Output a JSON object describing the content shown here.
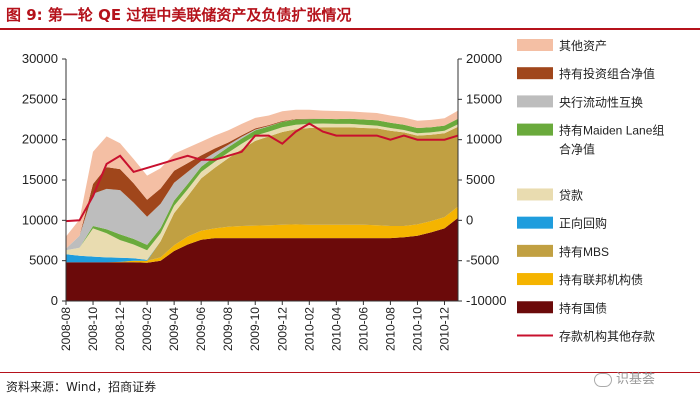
{
  "figure": {
    "label": "图 9:",
    "title": "第一轮 QE 过程中美联储资产及负债扩张情况",
    "source": "资料来源：Wind，招商证券",
    "watermark": "识基荟"
  },
  "colors": {
    "brand_red": "#b5121b",
    "other_assets": "#f4bfa4",
    "portfolio_net": "#a0461b",
    "swap_lines": "#bdbdbd",
    "maiden_lane": "#6aaa3c",
    "loans": "#e9dcb0",
    "repo": "#1f9ddd",
    "mbs": "#c1a042",
    "agency_debt": "#f5b400",
    "treasuries": "#6b0a0a",
    "deposits_line": "#c8102e"
  },
  "chart_data": {
    "type": "area",
    "stacked": true,
    "title": "第一轮 QE 过程中美联储资产及负债扩张情况",
    "x": [
      "2008-08",
      "2008-09",
      "2008-10",
      "2008-11",
      "2008-12",
      "2009-01",
      "2009-02",
      "2009-03",
      "2009-04",
      "2009-05",
      "2009-06",
      "2009-07",
      "2009-08",
      "2009-09",
      "2009-10",
      "2009-11",
      "2009-12",
      "2010-01",
      "2010-02",
      "2010-03",
      "2010-04",
      "2010-05",
      "2010-06",
      "2010-07",
      "2010-08",
      "2010-09",
      "2010-10",
      "2010-11",
      "2010-12",
      "2011-01"
    ],
    "x_tick_labels": [
      "2008-08",
      "2008-10",
      "2008-12",
      "2009-02",
      "2009-04",
      "2009-06",
      "2009-08",
      "2009-10",
      "2009-12",
      "2010-02",
      "2010-04",
      "2010-06",
      "2010-08",
      "2010-10",
      "2010-12"
    ],
    "left_axis": {
      "ylim": [
        0,
        30000
      ],
      "ticks": [
        0,
        5000,
        10000,
        15000,
        20000,
        25000,
        30000
      ]
    },
    "right_axis": {
      "ylim": [
        -10000,
        20000
      ],
      "ticks": [
        -10000,
        -5000,
        0,
        5000,
        10000,
        15000,
        20000
      ]
    },
    "series": [
      {
        "name": "持有国债",
        "color_key": "treasuries",
        "values": [
          4800,
          4800,
          4800,
          4800,
          4800,
          4800,
          4750,
          5000,
          6200,
          7000,
          7600,
          7800,
          7800,
          7800,
          7800,
          7800,
          7800,
          7800,
          7800,
          7800,
          7800,
          7800,
          7800,
          7800,
          7800,
          7900,
          8100,
          8500,
          9000,
          10300
        ]
      },
      {
        "name": "持有联邦机构债",
        "color_key": "agency_debt",
        "values": [
          0,
          0,
          0,
          0,
          50,
          200,
          250,
          400,
          700,
          1000,
          1100,
          1200,
          1400,
          1500,
          1550,
          1600,
          1650,
          1700,
          1650,
          1650,
          1650,
          1650,
          1650,
          1600,
          1500,
          1400,
          1400,
          1400,
          1400,
          1400
        ]
      },
      {
        "name": "持有MBS",
        "color_key": "mbs",
        "values": [
          0,
          0,
          0,
          0,
          0,
          0,
          0,
          2000,
          4000,
          5000,
          6500,
          7500,
          8500,
          9500,
          10500,
          11000,
          11500,
          11800,
          12000,
          12100,
          12100,
          12100,
          12000,
          12000,
          11800,
          11600,
          11000,
          10700,
          10400,
          9900
        ]
      },
      {
        "name": "正向回购",
        "color_key": "repo",
        "values": [
          1000,
          800,
          700,
          600,
          500,
          300,
          100,
          0,
          0,
          0,
          0,
          0,
          0,
          0,
          0,
          0,
          0,
          0,
          0,
          0,
          0,
          0,
          0,
          0,
          0,
          0,
          0,
          0,
          0,
          0
        ]
      },
      {
        "name": "贷款",
        "color_key": "loans",
        "values": [
          500,
          1000,
          3500,
          3000,
          2200,
          1700,
          1200,
          1000,
          900,
          850,
          800,
          750,
          700,
          700,
          650,
          600,
          600,
          550,
          500,
          450,
          400,
          400,
          400,
          350,
          350,
          300,
          300,
          300,
          300,
          300
        ]
      },
      {
        "name": "持有Maiden Lane组合净值",
        "color_key": "maiden_lane",
        "values": [
          0,
          0,
          300,
          500,
          700,
          700,
          650,
          650,
          650,
          650,
          650,
          650,
          650,
          650,
          650,
          650,
          650,
          650,
          600,
          600,
          600,
          650,
          650,
          650,
          650,
          650,
          650,
          650,
          650,
          700
        ]
      },
      {
        "name": "央行流动性互换",
        "color_key": "swap_lines",
        "values": [
          200,
          1500,
          4000,
          5000,
          5500,
          4500,
          3500,
          3000,
          2200,
          1500,
          700,
          500,
          300,
          200,
          100,
          50,
          20,
          10,
          0,
          0,
          0,
          0,
          0,
          0,
          0,
          0,
          0,
          0,
          0,
          0
        ]
      },
      {
        "name": "持有投资组合净值",
        "color_key": "portfolio_net",
        "values": [
          0,
          0,
          1200,
          2700,
          2600,
          2400,
          2100,
          1900,
          1500,
          1100,
          700,
          500,
          300,
          200,
          150,
          100,
          100,
          50,
          50,
          0,
          0,
          0,
          0,
          0,
          0,
          0,
          0,
          0,
          0,
          0
        ]
      },
      {
        "name": "其他资产",
        "color_key": "other_assets",
        "values": [
          1500,
          2000,
          4000,
          3800,
          3200,
          3000,
          3000,
          2500,
          2100,
          1900,
          1700,
          1600,
          1500,
          1400,
          1300,
          1200,
          1200,
          1150,
          1100,
          1000,
          1000,
          900,
          900,
          900,
          900,
          900,
          900,
          900,
          900,
          1000
        ]
      }
    ],
    "line_series": {
      "name": "存款机构其他存款",
      "axis": "right",
      "color_key": "deposits_line",
      "values": [
        -100,
        0,
        3000,
        7000,
        8000,
        6000,
        6500,
        7000,
        7500,
        8000,
        7500,
        7500,
        8000,
        8500,
        10500,
        10500,
        9500,
        11000,
        12000,
        11000,
        10500,
        10500,
        10500,
        10500,
        10000,
        10500,
        10000,
        10000,
        10000,
        10500
      ]
    },
    "legend": {
      "placement": "right",
      "items": [
        {
          "label": "其他资产",
          "color_key": "other_assets",
          "kind": "patch"
        },
        {
          "label": "持有投资组合净值",
          "color_key": "portfolio_net",
          "kind": "patch"
        },
        {
          "label": "央行流动性互换",
          "color_key": "swap_lines",
          "kind": "patch"
        },
        {
          "label": "持有Maiden Lane组",
          "label2": "合净值",
          "color_key": "maiden_lane",
          "kind": "patch"
        },
        {
          "label": "贷款",
          "color_key": "loans",
          "kind": "patch"
        },
        {
          "label": "正向回购",
          "color_key": "repo",
          "kind": "patch"
        },
        {
          "label": "持有MBS",
          "color_key": "mbs",
          "kind": "patch"
        },
        {
          "label": "持有联邦机构债",
          "color_key": "agency_debt",
          "kind": "patch"
        },
        {
          "label": "持有国债",
          "color_key": "treasuries",
          "kind": "patch"
        },
        {
          "label": "存款机构其他存款",
          "color_key": "deposits_line",
          "kind": "line"
        }
      ]
    }
  }
}
